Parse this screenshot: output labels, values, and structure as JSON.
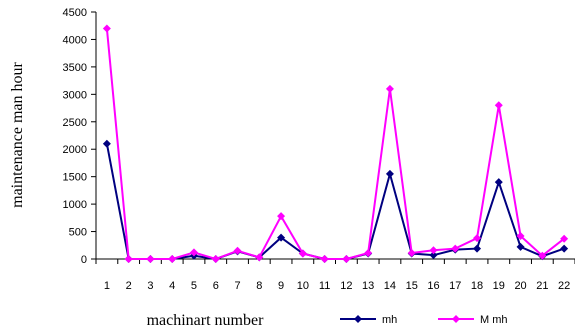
{
  "chart_data": {
    "type": "line",
    "xlabel": "machinart number",
    "ylabel": "maintenance man hour",
    "ylim": [
      0,
      4500
    ],
    "yticks": [
      0,
      500,
      1000,
      1500,
      2000,
      2500,
      3000,
      3500,
      4000,
      4500
    ],
    "x": [
      1,
      2,
      3,
      4,
      5,
      6,
      7,
      8,
      9,
      10,
      11,
      12,
      13,
      14,
      15,
      16,
      17,
      18,
      19,
      20,
      21,
      22
    ],
    "grid": false,
    "legend": "bottom-right",
    "series": [
      {
        "name": "mh",
        "color": "#000080",
        "marker": "diamond",
        "values": [
          2100,
          0,
          0,
          0,
          60,
          0,
          140,
          30,
          390,
          100,
          0,
          0,
          100,
          1550,
          100,
          70,
          170,
          190,
          1400,
          220,
          50,
          190
        ]
      },
      {
        "name": "M mh",
        "color": "#ff00ff",
        "marker": "diamond",
        "values": [
          4200,
          0,
          0,
          0,
          120,
          0,
          150,
          30,
          780,
          100,
          0,
          0,
          110,
          3100,
          110,
          160,
          190,
          380,
          2800,
          420,
          60,
          370
        ]
      }
    ]
  }
}
